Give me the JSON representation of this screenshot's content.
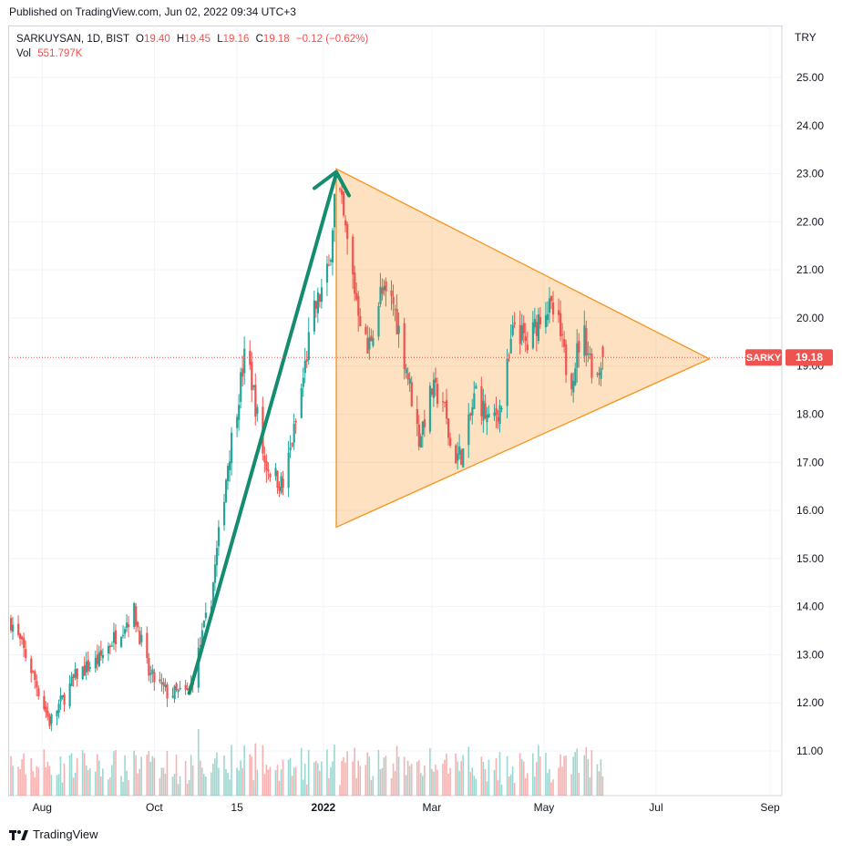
{
  "header": {
    "published": "Published on TradingView.com, Jun 02, 2022 09:34 UTC+3"
  },
  "legend": {
    "symbol": "SARKUYSAN, 1D, BIST",
    "open_label": "O",
    "open": "19.40",
    "high_label": "H",
    "high": "19.45",
    "low_label": "L",
    "low": "19.16",
    "close_label": "C",
    "close": "19.18",
    "change": "−0.12 (−0.62%)",
    "vol_label": "Vol",
    "vol": "551.797K"
  },
  "footer": {
    "brand": "TradingView"
  },
  "colors": {
    "up": "#26a69a",
    "down": "#ef5350",
    "triangle": "#f7931e",
    "trend": "#138c6f",
    "price_tag": "#ef5350"
  },
  "chart_data": {
    "type": "candlestick",
    "currency": "TRY",
    "y_ticks": [
      "25.00",
      "24.00",
      "23.00",
      "22.00",
      "21.00",
      "20.00",
      "19.00",
      "18.00",
      "17.00",
      "16.00",
      "15.00",
      "14.00",
      "13.00",
      "12.00",
      "11.00"
    ],
    "ylim": [
      10.0,
      26.0
    ],
    "x_ticks": [
      "Aug",
      "Oct",
      "15",
      "2022",
      "Mar",
      "May",
      "Jul",
      "Sep"
    ],
    "last_price": {
      "symbol": "SARKY",
      "value": "19.18"
    },
    "price_path": [
      [
        "2021-07-15",
        13.7
      ],
      [
        "2021-07-25",
        12.8
      ],
      [
        "2021-08-05",
        11.6
      ],
      [
        "2021-08-20",
        12.6
      ],
      [
        "2021-09-01",
        12.9
      ],
      [
        "2021-09-10",
        13.4
      ],
      [
        "2021-09-20",
        13.9
      ],
      [
        "2021-09-28",
        12.6
      ],
      [
        "2021-10-08",
        12.2
      ],
      [
        "2021-10-20",
        12.2
      ],
      [
        "2021-11-01",
        14.2
      ],
      [
        "2021-11-10",
        17.0
      ],
      [
        "2021-11-20",
        19.4
      ],
      [
        "2021-11-30",
        17.0
      ],
      [
        "2021-12-10",
        16.5
      ],
      [
        "2021-12-18",
        18.0
      ],
      [
        "2021-12-26",
        20.0
      ],
      [
        "2022-01-04",
        21.0
      ],
      [
        "2022-01-08",
        23.0
      ],
      [
        "2022-01-12",
        22.0
      ],
      [
        "2022-01-18",
        20.6
      ],
      [
        "2022-01-25",
        19.3
      ],
      [
        "2022-02-01",
        20.5
      ],
      [
        "2022-02-08",
        20.3
      ],
      [
        "2022-02-15",
        19.0
      ],
      [
        "2022-02-22",
        17.5
      ],
      [
        "2022-03-01",
        18.5
      ],
      [
        "2022-03-07",
        18.3
      ],
      [
        "2022-03-12",
        17.1
      ],
      [
        "2022-03-18",
        17.2
      ],
      [
        "2022-03-25",
        18.5
      ],
      [
        "2022-04-01",
        17.8
      ],
      [
        "2022-04-08",
        18.2
      ],
      [
        "2022-04-15",
        19.9
      ],
      [
        "2022-04-22",
        19.4
      ],
      [
        "2022-05-01",
        20.3
      ],
      [
        "2022-05-08",
        20.0
      ],
      [
        "2022-05-15",
        18.6
      ],
      [
        "2022-05-22",
        19.8
      ],
      [
        "2022-05-29",
        18.7
      ],
      [
        "2022-06-02",
        19.18
      ]
    ],
    "triangle": [
      [
        "2022-01-08",
        23.1
      ],
      [
        "2022-01-08",
        15.65
      ],
      [
        "2022-07-30",
        19.15
      ]
    ],
    "trend_line": [
      [
        "2021-10-20",
        12.2
      ],
      [
        "2022-01-08",
        23.0
      ]
    ]
  }
}
